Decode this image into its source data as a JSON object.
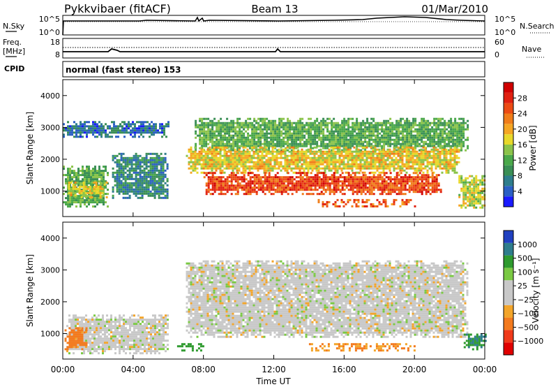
{
  "header": {
    "radar": "Pykkvibaer (fitACF)",
    "beam": "Beam 13",
    "date": "01/Mar/2010"
  },
  "nsky_panel": {
    "left_label": "N.Sky",
    "left_ticks": [
      "10^5",
      "10^0"
    ],
    "right_ticks": [
      "10^5",
      "10^0"
    ],
    "right_label": "N.Search"
  },
  "freq_panel": {
    "left_label_1": "Freq.",
    "left_label_2": "[MHz]",
    "left_ticks": [
      "18",
      "8"
    ],
    "right_ticks": [
      "60",
      "0"
    ],
    "right_label": "Nave"
  },
  "cpid_panel": {
    "label": "CPID",
    "text": "normal (fast stereo) 153"
  },
  "x_axis": {
    "ticks": [
      "00:00",
      "04:00",
      "08:00",
      "12:00",
      "16:00",
      "20:00",
      "00:00"
    ],
    "label": "Time UT"
  },
  "colors": {
    "power_scale": [
      "#1a1aff",
      "#2b5fc4",
      "#2e7d8c",
      "#3a8e55",
      "#4aa84a",
      "#8bc34a",
      "#e8d82a",
      "#f5a623",
      "#f07d1a",
      "#ec4b14",
      "#e02010",
      "#d00000"
    ],
    "velocity_scale": [
      "#e00000",
      "#f03a1a",
      "#f37a1e",
      "#f3a52a",
      "#c8c8c8",
      "#c8c8c8",
      "#7ac943",
      "#2e9a2e",
      "#2e7d8c",
      "#2040c0"
    ]
  },
  "chart_data": [
    {
      "type": "heatmap",
      "name_printed": "",
      "ylabel": "Slant Range [km]",
      "y_ticks": [
        "1000",
        "2000",
        "3000",
        "4000"
      ],
      "ylim": [
        200,
        4500
      ],
      "xlim": [
        0,
        24
      ],
      "colorbar_label": "Power [dB]",
      "colorbar_ticks": [
        "4",
        "8",
        "12",
        "16",
        "20",
        "24",
        "28"
      ],
      "colorbar_range": [
        0,
        32
      ],
      "regions": [
        {
          "t_start": 0.0,
          "t_end": 2.6,
          "r_low": 500,
          "r_high": 1800,
          "level_db": 12
        },
        {
          "t_start": 0.3,
          "t_end": 2.5,
          "r_low": 800,
          "r_high": 1300,
          "level_db": 18
        },
        {
          "t_start": 2.8,
          "t_end": 6.0,
          "r_low": 800,
          "r_high": 2200,
          "level_db": 8
        },
        {
          "t_start": 0.0,
          "t_end": 6.0,
          "r_low": 2700,
          "r_high": 3200,
          "level_db": 6
        },
        {
          "t_start": 7.5,
          "t_end": 23.0,
          "r_low": 2300,
          "r_high": 3300,
          "level_db": 12
        },
        {
          "t_start": 7.0,
          "t_end": 22.5,
          "r_low": 1600,
          "r_high": 2400,
          "level_db": 18
        },
        {
          "t_start": 8.0,
          "t_end": 21.5,
          "r_low": 900,
          "r_high": 1600,
          "level_db": 26
        },
        {
          "t_start": 14.5,
          "t_end": 20.0,
          "r_low": 550,
          "r_high": 750,
          "level_db": 24
        },
        {
          "t_start": 22.5,
          "t_end": 24.0,
          "r_low": 500,
          "r_high": 1500,
          "level_db": 16
        }
      ]
    },
    {
      "type": "heatmap",
      "name_printed": "",
      "ylabel": "Slant Range [km]",
      "y_ticks": [
        "1000",
        "2000",
        "3000",
        "4000"
      ],
      "ylim": [
        200,
        4500
      ],
      "xlim": [
        0,
        24
      ],
      "colorbar_label": "Velocity [m s⁻¹]",
      "colorbar_ticks": [
        "1000",
        "500",
        "100",
        "25",
        "−25",
        "−100",
        "−500",
        "−1000"
      ],
      "regions": [
        {
          "t_start": 0.2,
          "t_end": 6.0,
          "r_low": 400,
          "r_high": 1600,
          "velocity": 0
        },
        {
          "t_start": 0.1,
          "t_end": 1.4,
          "r_low": 500,
          "r_high": 1200,
          "velocity": -300
        },
        {
          "t_start": 7.0,
          "t_end": 23.0,
          "r_low": 900,
          "r_high": 3300,
          "velocity": 0
        },
        {
          "t_start": 6.5,
          "t_end": 8.0,
          "r_low": 450,
          "r_high": 700,
          "velocity": 200
        },
        {
          "t_start": 14.0,
          "t_end": 20.0,
          "r_low": 450,
          "r_high": 700,
          "velocity": -150
        },
        {
          "t_start": 22.8,
          "t_end": 24.0,
          "r_low": 500,
          "r_high": 1000,
          "velocity": 400
        }
      ]
    }
  ]
}
